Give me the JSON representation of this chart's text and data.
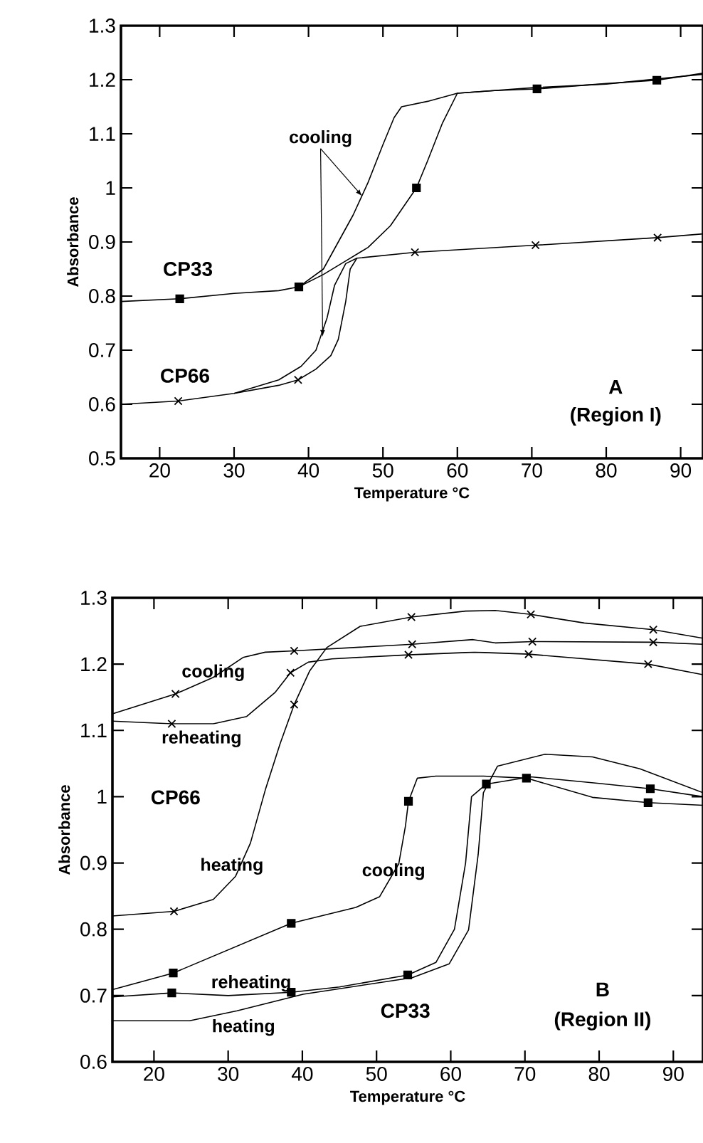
{
  "chart_data": [
    {
      "type": "line",
      "xlabel": "Temperature  °C",
      "ylabel": "Absorbance",
      "xlim": [
        14.8,
        93
      ],
      "ylim": [
        0.5,
        1.3
      ],
      "xticks": [
        20,
        30,
        40,
        50,
        60,
        70,
        80,
        90
      ],
      "yticks": [
        0.5,
        0.6,
        0.7,
        0.8,
        0.9,
        1,
        1.1,
        1.2,
        1.3
      ],
      "series": [
        {
          "color": "#000000",
          "x": [
            14.8,
            22.7,
            30,
            36,
            38.7,
            42,
            45,
            48,
            51,
            54.5,
            56,
            58,
            60,
            65,
            70.7,
            80,
            86.8,
            93
          ],
          "values": [
            0.79,
            0.795,
            0.805,
            0.81,
            0.817,
            0.84,
            0.865,
            0.89,
            0.93,
            1.0,
            1.05,
            1.12,
            1.175,
            1.18,
            1.183,
            1.193,
            1.199,
            1.212
          ]
        },
        {
          "color": "#000000",
          "x": [
            38.7,
            42,
            44,
            46,
            48,
            50,
            51.5,
            52.5,
            56,
            60,
            70,
            80,
            93
          ],
          "values": [
            0.817,
            0.85,
            0.9,
            0.95,
            1.01,
            1.08,
            1.13,
            1.15,
            1.16,
            1.175,
            1.185,
            1.192,
            1.21
          ]
        },
        {
          "type": "scatter",
          "marker": "square",
          "color": "#000000",
          "x": [
            22.7,
            38.7,
            54.5,
            70.7,
            86.8
          ],
          "values": [
            0.795,
            0.817,
            1.0,
            1.183,
            1.199
          ]
        },
        {
          "color": "#000000",
          "x": [
            14.8,
            22.5,
            30,
            36,
            38.6,
            41,
            43,
            44,
            45,
            45.6,
            46.5,
            54.3,
            70.5,
            86.9,
            93
          ],
          "values": [
            0.6,
            0.606,
            0.62,
            0.635,
            0.645,
            0.665,
            0.69,
            0.72,
            0.79,
            0.85,
            0.87,
            0.881,
            0.894,
            0.908,
            0.915
          ]
        },
        {
          "color": "#000000",
          "x": [
            30,
            36,
            39,
            41,
            42.5,
            43.5,
            45,
            46.5
          ],
          "values": [
            0.62,
            0.645,
            0.67,
            0.7,
            0.76,
            0.82,
            0.86,
            0.87
          ]
        },
        {
          "type": "scatter",
          "marker": "cross",
          "color": "#000000",
          "x": [
            22.5,
            38.6,
            54.3,
            70.5,
            86.9
          ],
          "values": [
            0.606,
            0.645,
            0.881,
            0.894,
            0.908
          ]
        }
      ],
      "annotations": [
        "CP33",
        {
          "text": "cooling",
          "x": 47.2,
          "y": 0.985
        },
        "CP66",
        "A",
        "(Region  I)"
      ]
    },
    {
      "type": "line",
      "xlabel": "Temperature  °C",
      "ylabel": "Absorbance",
      "xlim": [
        14.4,
        94
      ],
      "ylim": [
        0.6,
        1.3
      ],
      "xticks": [
        20,
        30,
        40,
        50,
        60,
        70,
        80,
        90
      ],
      "yticks": [
        0.6,
        0.7,
        0.8,
        0.9,
        1,
        1.1,
        1.2,
        1.3
      ],
      "series": [
        {
          "color": "#000000",
          "x": [
            14.4,
            22.7,
            28,
            31,
            33,
            35,
            37,
            38.9,
            41,
            43.3,
            47.8,
            54.7,
            62,
            66,
            70.8,
            78,
            87.3,
            94
          ],
          "values": [
            0.82,
            0.827,
            0.845,
            0.88,
            0.93,
            1.01,
            1.08,
            1.139,
            1.19,
            1.225,
            1.257,
            1.271,
            1.28,
            1.281,
            1.275,
            1.262,
            1.252,
            1.239
          ]
        },
        {
          "color": "#000000",
          "x": [
            14.4,
            22.9,
            28,
            32,
            35,
            38.9,
            54.8,
            63,
            66,
            71,
            87.3,
            94
          ],
          "values": [
            1.125,
            1.155,
            1.18,
            1.21,
            1.218,
            1.22,
            1.23,
            1.237,
            1.232,
            1.234,
            1.233,
            1.23
          ]
        },
        {
          "color": "#000000",
          "x": [
            14.4,
            22.4,
            28,
            32.5,
            36.3,
            38.4,
            40.8,
            44,
            54.3,
            63.2,
            70.5,
            86.6,
            94
          ],
          "values": [
            1.114,
            1.11,
            1.11,
            1.121,
            1.157,
            1.187,
            1.203,
            1.208,
            1.214,
            1.218,
            1.215,
            1.2,
            1.184
          ]
        },
        {
          "type": "scatter",
          "marker": "cross",
          "color": "#000000",
          "x": [
            22.7,
            38.9,
            54.7,
            70.8,
            87.3
          ],
          "values": [
            0.827,
            1.139,
            1.271,
            1.275,
            1.252
          ]
        },
        {
          "type": "scatter",
          "marker": "cross",
          "color": "#000000",
          "x": [
            22.9,
            38.9,
            54.8,
            71,
            87.3
          ],
          "values": [
            1.155,
            1.22,
            1.23,
            1.234,
            1.233
          ]
        },
        {
          "type": "scatter",
          "marker": "cross",
          "color": "#000000",
          "x": [
            22.4,
            38.4,
            54.3,
            70.5,
            86.6
          ],
          "values": [
            1.11,
            1.187,
            1.214,
            1.215,
            1.2
          ]
        },
        {
          "color": "#000000",
          "x": [
            14.4,
            24.8,
            31.2,
            40.1,
            54.8,
            59.8,
            62.4,
            63.7,
            64.4,
            66.3,
            72.7,
            79.1,
            85.5,
            94
          ],
          "values": [
            0.662,
            0.662,
            0.677,
            0.702,
            0.727,
            0.748,
            0.799,
            0.913,
            1.006,
            1.046,
            1.064,
            1.06,
            1.042,
            1.006
          ]
        },
        {
          "color": "#000000",
          "x": [
            14.4,
            22.4,
            30,
            38.5,
            45,
            54.2,
            58,
            60.5,
            62,
            62.8,
            64.8,
            70.8,
            80,
            86.9,
            94
          ],
          "values": [
            0.698,
            0.704,
            0.7,
            0.705,
            0.713,
            0.731,
            0.75,
            0.8,
            0.9,
            1.0,
            1.019,
            1.03,
            1.02,
            1.012,
            1.0
          ]
        },
        {
          "color": "#000000",
          "x": [
            14.4,
            22.6,
            38.5,
            47.2,
            50.4,
            53,
            53.9,
            54.3,
            55.5,
            58,
            64.4,
            70.2,
            79.1,
            86.6,
            94
          ],
          "values": [
            0.709,
            0.734,
            0.809,
            0.833,
            0.849,
            0.899,
            0.956,
            0.993,
            1.028,
            1.031,
            1.031,
            1.028,
            0.999,
            0.991,
            0.987
          ]
        },
        {
          "type": "scatter",
          "marker": "square",
          "color": "#000000",
          "x": [
            22.4,
            38.5,
            54.2,
            64.8,
            86.9
          ],
          "values": [
            0.704,
            0.705,
            0.731,
            1.019,
            1.012
          ]
        },
        {
          "type": "scatter",
          "marker": "square",
          "color": "#000000",
          "x": [
            22.6,
            38.5,
            54.3,
            70.2,
            86.6
          ],
          "values": [
            0.734,
            0.809,
            0.993,
            1.028,
            0.991
          ]
        }
      ],
      "annotations": [
        {
          "text": "cooling",
          "x": 28,
          "y": 1.187
        },
        "reheating",
        "CP66",
        {
          "text": "heating",
          "x": 30.5,
          "y": 0.895
        },
        {
          "text": "cooling",
          "x": 52.3,
          "y": 0.887
        },
        "reheating",
        "heating",
        "CP33",
        "B",
        "(Region  II)"
      ]
    }
  ]
}
